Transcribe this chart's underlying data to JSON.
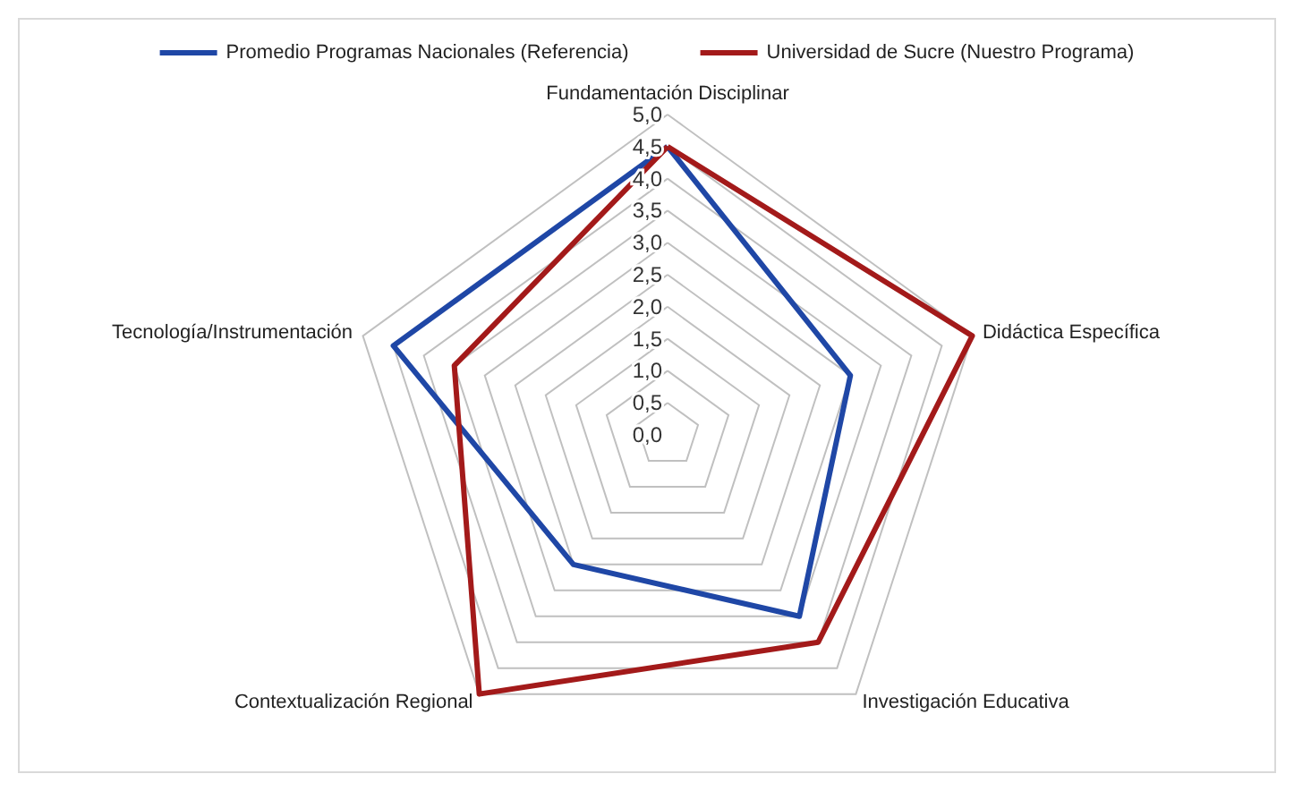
{
  "chart_data": {
    "type": "radar",
    "categories": [
      "Fundamentación Disciplinar",
      "Didáctica Específica",
      "Investigación Educativa",
      "Contextualización Regional",
      "Tecnología/Instrumentación"
    ],
    "series": [
      {
        "name": "Promedio Programas Nacionales (Referencia)",
        "color": "#1f47a6",
        "values": [
          4.5,
          3.0,
          3.5,
          2.5,
          4.5
        ]
      },
      {
        "name": "Universidad de Sucre (Nuestro Programa)",
        "color": "#a31a1a",
        "values": [
          4.5,
          5.0,
          4.0,
          5.0,
          3.5
        ]
      }
    ],
    "ylim": [
      0,
      5
    ],
    "yticks": [
      {
        "value": 0,
        "label": "0,0"
      },
      {
        "value": 0.5,
        "label": "0,5"
      },
      {
        "value": 1,
        "label": "1,0"
      },
      {
        "value": 1.5,
        "label": "1,5"
      },
      {
        "value": 2,
        "label": "2,0"
      },
      {
        "value": 2.5,
        "label": "2,5"
      },
      {
        "value": 3,
        "label": "3,0"
      },
      {
        "value": 3.5,
        "label": "3,5"
      },
      {
        "value": 4,
        "label": "4,0"
      },
      {
        "value": 4.5,
        "label": "4,5"
      },
      {
        "value": 5,
        "label": "5,0"
      }
    ],
    "grid": true,
    "legend": "top",
    "marker": "none"
  }
}
